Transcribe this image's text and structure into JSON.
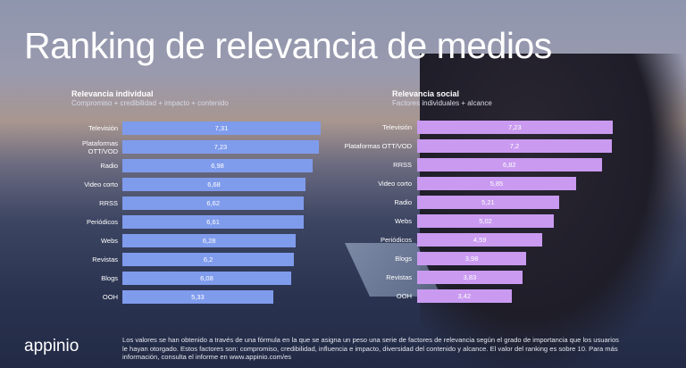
{
  "title": "Ranking de relevancia de medios",
  "logo": "appinio",
  "footnote": "Los valores se han obtenido a través de una fórmula en la que se asigna un peso una serie de factores de relevancia según el grado de importancia que los usuarios le hayan otorgado. Estos factores son: compromiso, credibilidad, influencia e impacto, diversidad del contenido y alcance. El valor del ranking es sobre 10. Para más información, consulta el informe en www.appinio.com/es",
  "chart_data": [
    {
      "type": "bar",
      "orientation": "horizontal",
      "title": "Relevancia individual",
      "subtitle": "Compromiso + credibilidad + impacto + contenido",
      "color": "#7f9bec",
      "categories": [
        "Televisión",
        "Plataformas OTT/VOD",
        "Radio",
        "Video corto",
        "RRSS",
        "Periódicos",
        "Webs",
        "Revistas",
        "Blogs",
        "OOH"
      ],
      "values": [
        7.31,
        7.23,
        6.98,
        6.68,
        6.62,
        6.61,
        6.28,
        6.2,
        6.08,
        5.33
      ],
      "value_labels": [
        "7,31",
        "7,23",
        "6,98",
        "6,68",
        "6,62",
        "6,61",
        "6,28",
        "6,2",
        "6,08",
        "5,33"
      ]
    },
    {
      "type": "bar",
      "orientation": "horizontal",
      "title": "Relevancia social",
      "subtitle": "Factores individuales + alcance",
      "color": "#c99af0",
      "categories": [
        "Televisión",
        "Plataformas OTT/VOD",
        "RRSS",
        "Video corto",
        "Radio",
        "Webs",
        "Periódicos",
        "Blogs",
        "Revistas",
        "OOH"
      ],
      "values": [
        7.23,
        7.2,
        6.82,
        5.85,
        5.21,
        5.02,
        4.59,
        3.98,
        3.83,
        3.42
      ],
      "value_labels": [
        "7,23",
        "7,2",
        "6,82",
        "5,85",
        "5,21",
        "5,02",
        "4,59",
        "3,98",
        "3,83",
        "3,42"
      ]
    }
  ]
}
